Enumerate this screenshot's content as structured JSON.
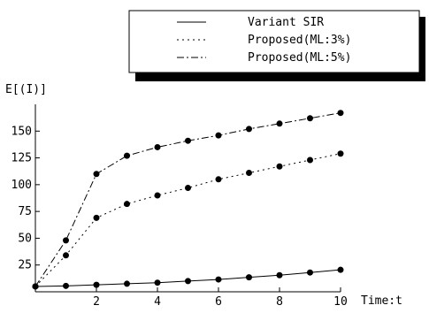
{
  "chart_data": {
    "type": "line",
    "title": "",
    "xlabel": "Time:t",
    "ylabel": "E[(I)]",
    "xlim": [
      0,
      10
    ],
    "ylim": [
      0,
      175
    ],
    "x_ticks": [
      "2",
      "4",
      "6",
      "8",
      "10"
    ],
    "y_ticks": [
      "25",
      "50",
      "75",
      "100",
      "125",
      "150"
    ],
    "grid": false,
    "legend_position": "top-right",
    "x": [
      0,
      1,
      2,
      3,
      4,
      5,
      6,
      7,
      8,
      9,
      10
    ],
    "series": [
      {
        "name": "Variant SIR",
        "style": "solid",
        "values": [
          5,
          5.5,
          6.5,
          7.5,
          8.5,
          10,
          11.5,
          13.5,
          15.5,
          18,
          20.5
        ]
      },
      {
        "name": "Proposed(ML:3%)",
        "style": "dotted",
        "values": [
          5,
          34,
          69,
          82,
          90,
          97,
          105,
          111,
          117,
          123,
          129
        ]
      },
      {
        "name": "Proposed(ML:5%)",
        "style": "dashdot",
        "values": [
          5,
          48,
          110,
          127,
          135,
          141,
          146,
          152,
          157,
          162,
          167
        ]
      }
    ]
  }
}
